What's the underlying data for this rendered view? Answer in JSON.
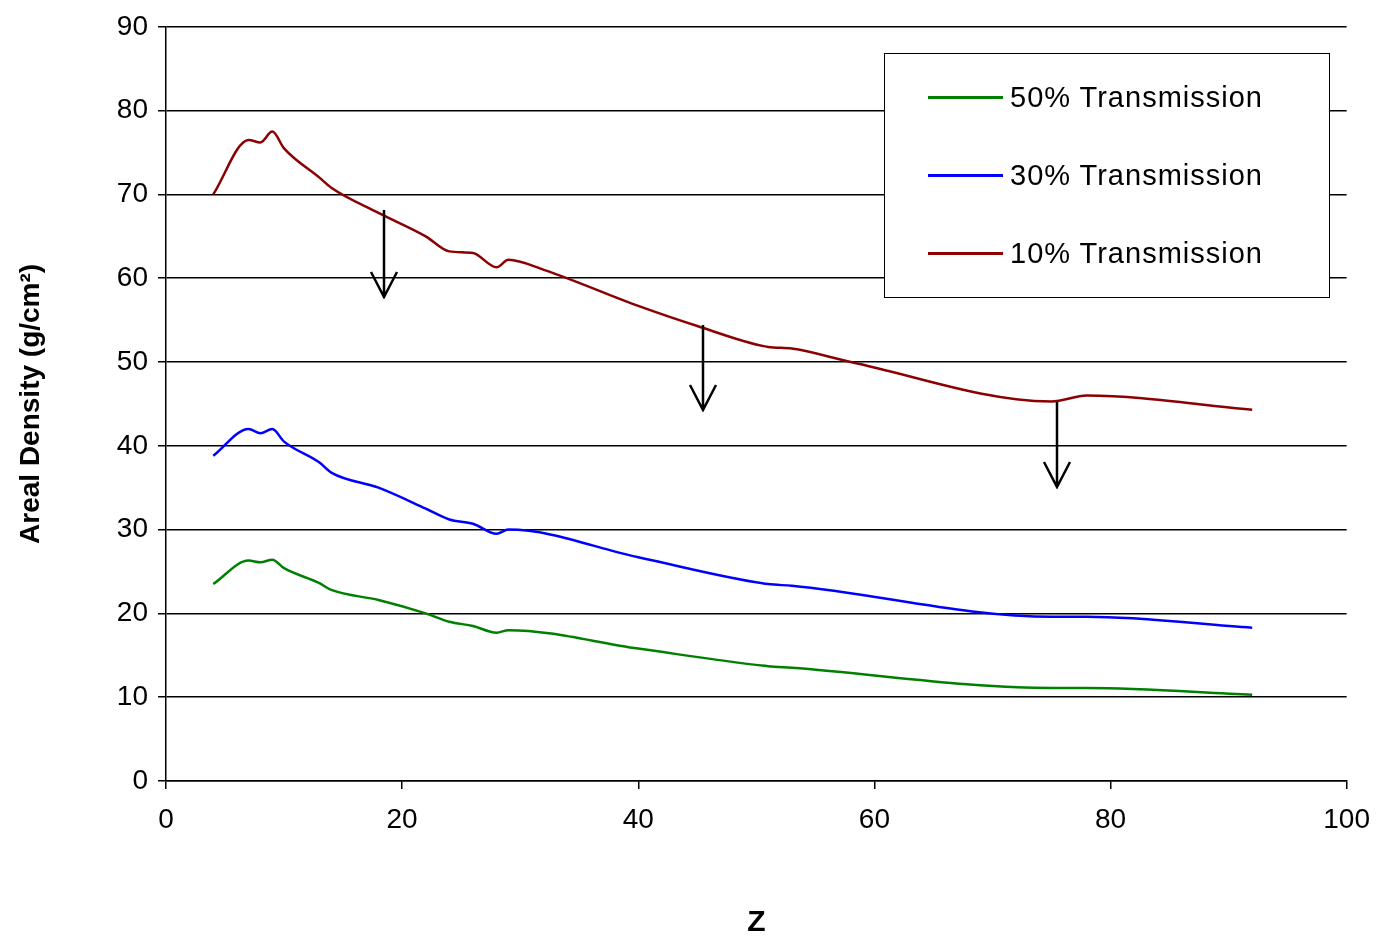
{
  "chart_data": {
    "type": "line",
    "xlabel": "Z",
    "ylabel": "Areal Density (g/cm²)",
    "xlim": [
      0,
      100
    ],
    "xticks": [
      0,
      20,
      40,
      60,
      80,
      100
    ],
    "ylim": [
      0,
      90
    ],
    "yticks": [
      0,
      10,
      20,
      30,
      40,
      50,
      60,
      70,
      80,
      90
    ],
    "grid": "y",
    "legend": "top right",
    "marker": "none",
    "line_style": "solid",
    "series": [
      {
        "name": "50% Transmission",
        "color": "#008000",
        "x": [
          4,
          7,
          8,
          9,
          10,
          13,
          14,
          18,
          22,
          24,
          26,
          28,
          29,
          40,
          51,
          53,
          75,
          78,
          92
        ],
        "values": [
          23.5,
          26.3,
          26.1,
          26.4,
          25.4,
          23.6,
          22.8,
          21.6,
          20,
          19,
          18.5,
          17.7,
          18,
          15.8,
          13.7,
          13.5,
          11.1,
          11.1,
          10.3
        ]
      },
      {
        "name": "30% Transmission",
        "color": "#0000ff",
        "x": [
          4,
          7,
          8,
          9,
          10,
          13,
          14,
          18,
          22,
          24,
          26,
          28,
          29,
          40,
          51,
          53,
          75,
          78,
          92
        ],
        "values": [
          38.8,
          42,
          41.5,
          42,
          40.5,
          38,
          36.8,
          35,
          32.5,
          31.2,
          30.7,
          29.5,
          30,
          26.7,
          23.5,
          23.3,
          19.6,
          19.6,
          18.3
        ]
      },
      {
        "name": "10% Transmission",
        "color": "#8b0000",
        "x": [
          4,
          7,
          8,
          9,
          10,
          13,
          14,
          18,
          22,
          24,
          26,
          28,
          29,
          32,
          40,
          45,
          51,
          53,
          58,
          75,
          78,
          92
        ],
        "values": [
          70,
          76.5,
          76.2,
          77.5,
          75.5,
          72,
          70.8,
          67.8,
          65,
          63.2,
          63,
          61.3,
          62.2,
          61,
          56.7,
          54.3,
          51.8,
          51.6,
          50,
          45.3,
          46,
          44.3
        ]
      }
    ]
  }
}
